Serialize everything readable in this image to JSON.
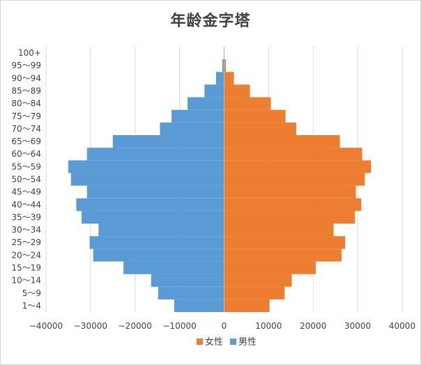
{
  "chart_data": {
    "type": "bar",
    "orientation": "horizontal",
    "title": "年龄金字塔",
    "categories": [
      "1～4",
      "5～9",
      "10～14",
      "15～19",
      "20～24",
      "25～29",
      "30～34",
      "35～39",
      "40～44",
      "45～49",
      "50～54",
      "55～59",
      "60～64",
      "65～69",
      "70～74",
      "75～79",
      "80～84",
      "85～89",
      "90～94",
      "95～99",
      "100+"
    ],
    "series": [
      {
        "name": "女性",
        "color": "#ed7d31",
        "values": [
          10200,
          13600,
          15200,
          20600,
          26400,
          27200,
          24600,
          29400,
          30800,
          29600,
          31600,
          33000,
          31000,
          26000,
          16200,
          13800,
          10500,
          5800,
          2200,
          400,
          100
        ]
      },
      {
        "name": "男性",
        "color": "#5b9bd5",
        "values": [
          -11200,
          -14800,
          -16400,
          -22600,
          -29400,
          -30200,
          -28200,
          -32000,
          -33200,
          -30800,
          -34400,
          -35000,
          -30800,
          -25000,
          -14400,
          -11800,
          -8200,
          -4400,
          -1800,
          -400,
          -100
        ]
      }
    ],
    "xlim": [
      -40000,
      40000
    ],
    "xticks": [
      "-40000",
      "-30000",
      "-20000",
      "-10000",
      "0",
      "10000",
      "20000",
      "30000",
      "40000"
    ],
    "grid": "vertical",
    "legend": "bottom"
  }
}
